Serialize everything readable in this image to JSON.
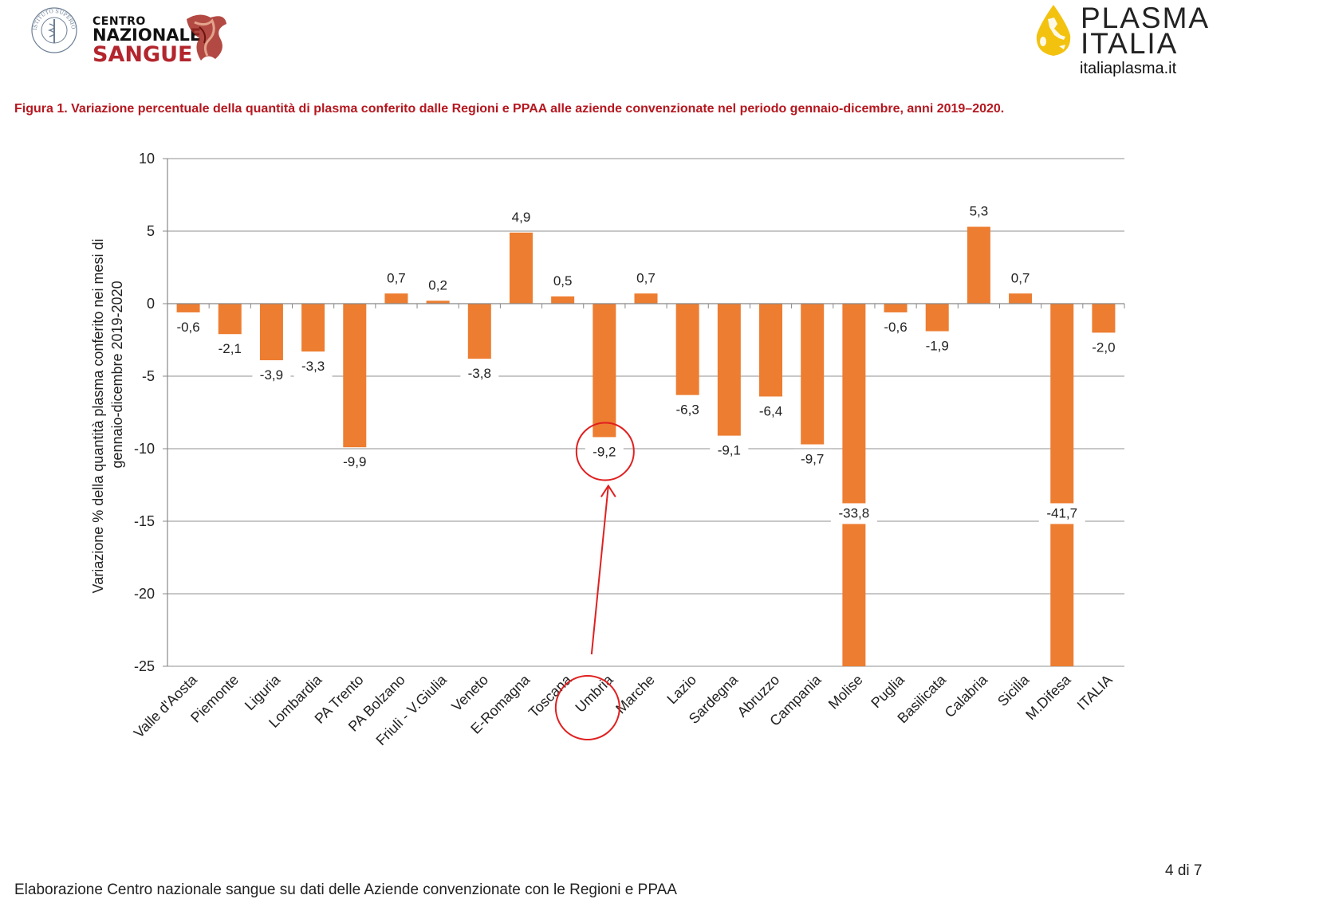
{
  "header": {
    "cns_logo": {
      "line1": "CENTRO",
      "line2": "NAZIONALE",
      "line3": "SANGUE",
      "seal_text": "ISTITUTO SUPERIORE DI SANITÀ"
    },
    "plasma_logo": {
      "line1": "PLASMA",
      "line2": "ITALIA",
      "url": "italiaplasma.it"
    }
  },
  "figure_title": "Figura 1. Variazione percentuale della quantità di plasma conferito dalle Regioni e PPAA alle aziende convenzionate nel periodo gennaio-dicembre, anni 2019–2020.",
  "chart_data": {
    "type": "bar",
    "title": "",
    "ylabel_line1": "Variazione %  della quantità plasma conferito nei mesi di",
    "ylabel_line2": "gennaio-dicembre 2019-2020",
    "xlabel": "",
    "ylim": [
      -25,
      10
    ],
    "yticks": [
      10,
      5,
      0,
      -5,
      -10,
      -15,
      -20,
      -25
    ],
    "grid": true,
    "bar_color": "#ed7d31",
    "categories": [
      "Valle d'Aosta",
      "Piemonte",
      "Liguria",
      "Lombardia",
      "PA Trento",
      "PA Bolzano",
      "Friuli - V.Giulia",
      "Veneto",
      "E-Romagna",
      "Toscana",
      "Umbria",
      "Marche",
      "Lazio",
      "Sardegna",
      "Abruzzo",
      "Campania",
      "Molise",
      "Puglia",
      "Basilicata",
      "Calabria",
      "Sicilia",
      "M.Difesa",
      "ITALIA"
    ],
    "values": [
      -0.6,
      -2.1,
      -3.9,
      -3.3,
      -9.9,
      0.7,
      0.2,
      -3.8,
      4.9,
      0.5,
      -9.2,
      0.7,
      -6.3,
      -9.1,
      -6.4,
      -9.7,
      -33.8,
      -0.6,
      -1.9,
      5.3,
      0.7,
      -41.7,
      -2.0
    ],
    "data_labels": [
      "-0,6",
      "-2,1",
      "-3,9",
      "-3,3",
      "-9,9",
      "0,7",
      "0,2",
      "-3,8",
      "4,9",
      "0,5",
      "-9,2",
      "0,7",
      "-6,3",
      "-9,1",
      "-6,4",
      "-9,7",
      "-33,8",
      "-0,6",
      "-1,9",
      "5,3",
      "0,7",
      "-41,7",
      "-2,0"
    ],
    "annotation": {
      "color": "#e02020",
      "highlight": "Umbria"
    }
  },
  "page_number": "4 di 7",
  "footer": "Elaborazione Centro nazionale sangue su dati delle Aziende convenzionate con le Regioni e PPAA"
}
